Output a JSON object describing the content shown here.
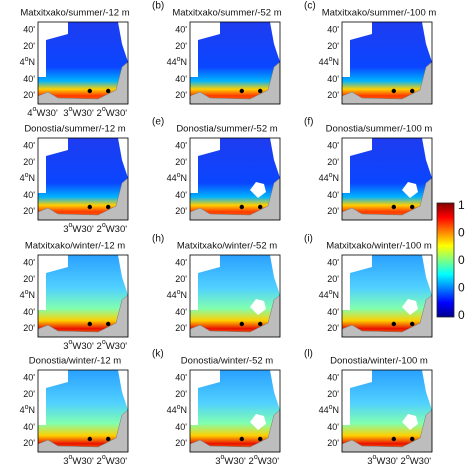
{
  "panels": [
    {
      "title": "Matxitxako/summer/-12 m",
      "yticks": [
        "40'",
        "20'",
        {
          "deg": "4",
          "sup": "o",
          "rest": "N"
        },
        "40'",
        "20'"
      ],
      "xticks": [
        {
          "deg": "4",
          "sup": "o",
          "rest": "W30'"
        },
        {
          "deg": "3",
          "sup": "o",
          "rest": "W30'"
        },
        {
          "deg": "2",
          "sup": "o",
          "rest": "W30'"
        }
      ]
    },
    {
      "letter": "(b)",
      "title": "Matxitxako/summer/-52 m",
      "yticks": [
        "40'",
        "20'",
        {
          "deg": "44",
          "sup": "o",
          "rest": "N"
        },
        "40'",
        "20'"
      ]
    },
    {
      "letter": "(c)",
      "title": "Matxitxako/summer/-100 m",
      "yticks": [
        "40'",
        "20'",
        {
          "deg": "44",
          "sup": "o",
          "rest": "N"
        },
        "40'",
        "20'"
      ]
    },
    {
      "title": "Donostia/summer/-12 m",
      "yticks": [
        "40'",
        "20'",
        {
          "deg": "4",
          "sup": "o",
          "rest": "N"
        },
        "40'",
        "20'"
      ],
      "xticks": [
        {
          "deg": "3",
          "sup": "o",
          "rest": "W30'"
        },
        {
          "deg": "2",
          "sup": "o",
          "rest": "W30'"
        }
      ]
    },
    {
      "letter": "(e)",
      "title": "Donostia/summer/-52 m",
      "yticks": [
        "40'",
        "20'",
        {
          "deg": "44",
          "sup": "o",
          "rest": "N"
        },
        "40'",
        "20'"
      ]
    },
    {
      "letter": "(f)",
      "title": "Donostia/summer/-100 m",
      "yticks": [
        "40'",
        "20'",
        {
          "deg": "44",
          "sup": "o",
          "rest": "N"
        },
        "40'",
        "20'"
      ]
    },
    {
      "title": "Matxitxako/winter/-12 m",
      "yticks": [
        "40'",
        "20'",
        {
          "deg": "4",
          "sup": "o",
          "rest": "N"
        },
        "40'",
        "20'"
      ],
      "xticks": [
        {
          "deg": "3",
          "sup": "o",
          "rest": "W30'"
        },
        {
          "deg": "2",
          "sup": "o",
          "rest": "W30'"
        }
      ]
    },
    {
      "letter": "(h)",
      "title": "Matxitxako/winter/-52 m",
      "yticks": [
        "40'",
        "20'",
        {
          "deg": "44",
          "sup": "o",
          "rest": "N"
        },
        "40'",
        "20'"
      ]
    },
    {
      "letter": "(i)",
      "title": "Matxitxako/winter/-100 m",
      "yticks": [
        "40'",
        "20'",
        {
          "deg": "44",
          "sup": "o",
          "rest": "N"
        },
        "40'",
        "20'"
      ]
    },
    {
      "title": "Donostia/winter/-12 m",
      "yticks": [
        "40'",
        "20'",
        {
          "deg": "4",
          "sup": "o",
          "rest": "N"
        },
        "40'",
        "20'"
      ],
      "xticks": [
        {
          "deg": "3",
          "sup": "o",
          "rest": "W30'"
        },
        {
          "deg": "2",
          "sup": "o",
          "rest": "W30'"
        }
      ]
    },
    {
      "letter": "(k)",
      "title": "Donostia/winter/-52 m",
      "yticks": [
        "40'",
        "20'",
        {
          "deg": "44",
          "sup": "o",
          "rest": "N"
        },
        "40'",
        "20'"
      ],
      "xticks": [
        {
          "deg": "3",
          "sup": "o",
          "rest": "W30'"
        },
        {
          "deg": "2",
          "sup": "o",
          "rest": "W30'"
        }
      ]
    },
    {
      "letter": "(l)",
      "title": "Donostia/winter/-100 m",
      "yticks": [
        "40'",
        "20'",
        {
          "deg": "44",
          "sup": "o",
          "rest": "N"
        },
        "40'",
        "20'"
      ],
      "xticks": [
        {
          "deg": "3",
          "sup": "o",
          "rest": "W30'"
        },
        {
          "deg": "2",
          "sup": "o",
          "rest": "W30'"
        }
      ]
    }
  ],
  "colorbar": {
    "labels": [
      "1",
      "0",
      "0",
      "0",
      "0"
    ]
  }
}
